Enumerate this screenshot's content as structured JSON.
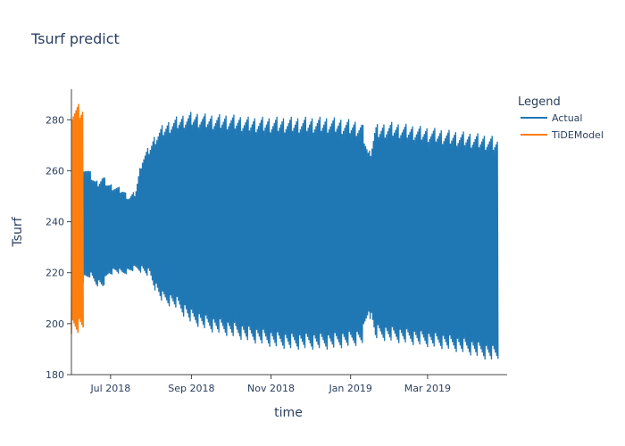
{
  "chart_data": {
    "type": "line",
    "title": "Tsurf predict",
    "xlabel": "time",
    "ylabel": "Tsurf",
    "xlim": [
      "2018-06-01",
      "2019-05-01"
    ],
    "ylim": [
      180,
      292
    ],
    "x_ticks": [
      "Jul 2018",
      "Sep 2018",
      "Nov 2018",
      "Jan 2019",
      "Mar 2019"
    ],
    "y_ticks": [
      180,
      200,
      220,
      240,
      260,
      280
    ],
    "grid": false,
    "legend": {
      "title": "Legend",
      "placement": "top-right"
    },
    "series": [
      {
        "name": "Actual",
        "color": "#1f77b4",
        "style": "dense diurnal oscillation (band between daily min and max)",
        "x": [
          "2018-06-10",
          "2018-06-15",
          "2018-06-20",
          "2018-06-25",
          "2018-06-30",
          "2018-07-05",
          "2018-07-10",
          "2018-07-15",
          "2018-07-20",
          "2018-07-25",
          "2018-07-31",
          "2018-08-05",
          "2018-08-10",
          "2018-08-20",
          "2018-09-01",
          "2018-09-15",
          "2018-10-01",
          "2018-10-15",
          "2018-11-01",
          "2018-11-15",
          "2018-12-01",
          "2018-12-15",
          "2019-01-01",
          "2019-01-10",
          "2019-01-15",
          "2019-01-20",
          "2019-02-01",
          "2019-02-15",
          "2019-03-01",
          "2019-03-15",
          "2019-04-01",
          "2019-04-15",
          "2019-04-24"
        ],
        "y_min": [
          216,
          218,
          215,
          214,
          219,
          220,
          219,
          220,
          221,
          220,
          218,
          212,
          208,
          206,
          200,
          197,
          195,
          193,
          191,
          190,
          190,
          190,
          191,
          192,
          204,
          194,
          193,
          192,
          191,
          190,
          188,
          186,
          185
        ],
        "y_max": [
          263,
          260,
          256,
          258,
          255,
          254,
          253,
          250,
          252,
          265,
          270,
          275,
          278,
          281,
          283,
          282,
          282,
          281,
          281,
          281,
          281,
          281,
          280,
          279,
          267,
          278,
          279,
          278,
          277,
          276,
          275,
          274,
          273
        ]
      },
      {
        "name": "TiDEModel",
        "color": "#ff7f0e",
        "style": "dense oscillation band",
        "x": [
          "2018-06-01",
          "2018-06-10"
        ],
        "y_min": [
          196,
          196
        ],
        "y_max": [
          286,
          286
        ]
      }
    ]
  }
}
